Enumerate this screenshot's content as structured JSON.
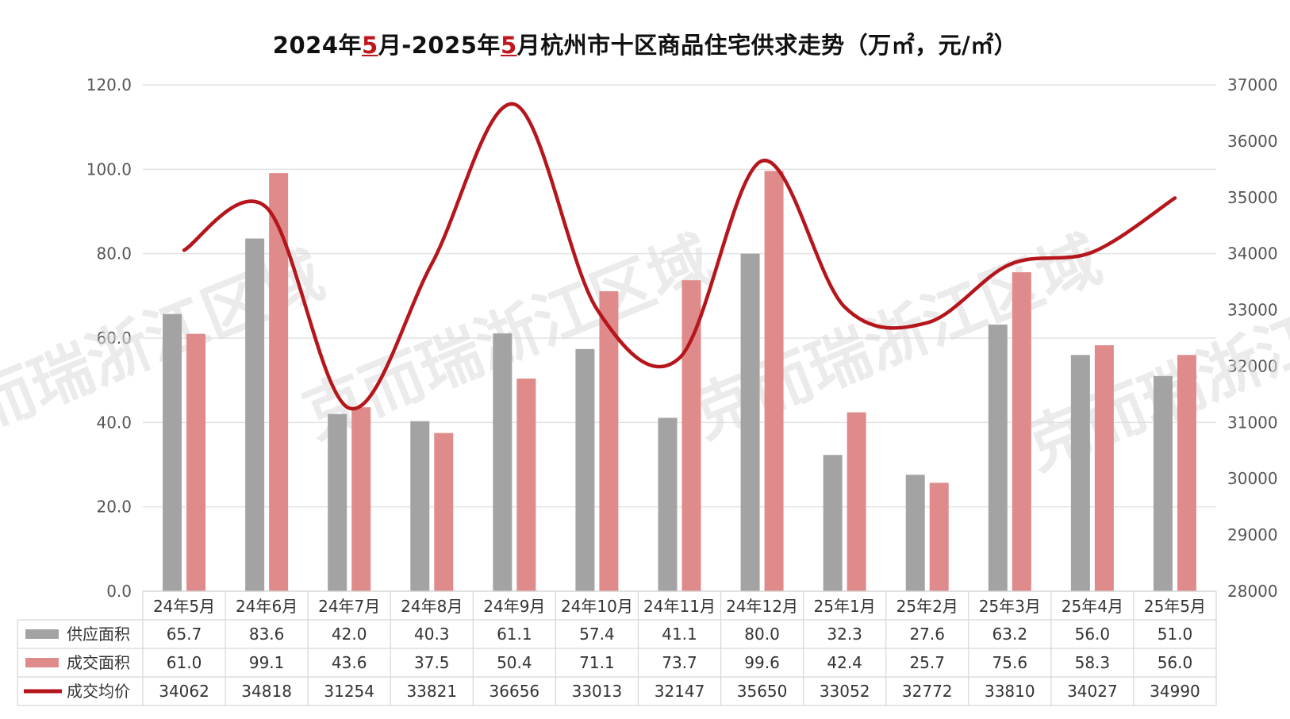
{
  "title": {
    "part1": "2024年",
    "m1": "5",
    "part2": "月-2025年",
    "m2": "5",
    "part3": "月杭州市十区商品住宅供求走势（万㎡，元/㎡）"
  },
  "watermark": "克而瑞浙江区域",
  "colors": {
    "supply": "#a3a3a3",
    "deal": "#e08b8b",
    "price": "#b5161c",
    "grid": "#e2e2e2",
    "title_highlight": "#c0161d"
  },
  "chart_data": {
    "type": "bar",
    "categories": [
      "24年5月",
      "24年6月",
      "24年7月",
      "24年8月",
      "24年9月",
      "24年10月",
      "24年11月",
      "24年12月",
      "25年1月",
      "25年2月",
      "25年3月",
      "25年4月",
      "25年5月"
    ],
    "series": [
      {
        "name": "供应面积",
        "type": "bar",
        "axis": "left",
        "values": [
          65.7,
          83.6,
          42.0,
          40.3,
          61.1,
          57.4,
          41.1,
          80.0,
          32.3,
          27.6,
          63.2,
          56.0,
          51.0
        ]
      },
      {
        "name": "成交面积",
        "type": "bar",
        "axis": "left",
        "values": [
          61.0,
          99.1,
          43.6,
          37.5,
          50.4,
          71.1,
          73.7,
          99.6,
          42.4,
          25.7,
          75.6,
          58.3,
          56.0
        ]
      },
      {
        "name": "成交均价",
        "type": "line",
        "axis": "right",
        "values": [
          34062,
          34818,
          31254,
          33821,
          36656,
          33013,
          32147,
          35650,
          33052,
          32772,
          33810,
          34027,
          34990
        ]
      }
    ],
    "left_axis": {
      "min": 0,
      "max": 120,
      "step": 20,
      "ticks": [
        "0.0",
        "20.0",
        "40.0",
        "60.0",
        "80.0",
        "100.0",
        "120.0"
      ]
    },
    "right_axis": {
      "min": 28000,
      "max": 37000,
      "step": 1000,
      "ticks": [
        "28000",
        "29000",
        "30000",
        "31000",
        "32000",
        "33000",
        "34000",
        "35000",
        "36000",
        "37000"
      ]
    },
    "table_values": [
      [
        "65.7",
        "83.6",
        "42.0",
        "40.3",
        "61.1",
        "57.4",
        "41.1",
        "80.0",
        "32.3",
        "27.6",
        "63.2",
        "56.0",
        "51.0"
      ],
      [
        "61.0",
        "99.1",
        "43.6",
        "37.5",
        "50.4",
        "71.1",
        "73.7",
        "99.6",
        "42.4",
        "25.7",
        "75.6",
        "58.3",
        "56.0"
      ],
      [
        "34062",
        "34818",
        "31254",
        "33821",
        "36656",
        "33013",
        "32147",
        "35650",
        "33052",
        "32772",
        "33810",
        "34027",
        "34990"
      ]
    ],
    "grid": true,
    "legend": "data-table"
  }
}
